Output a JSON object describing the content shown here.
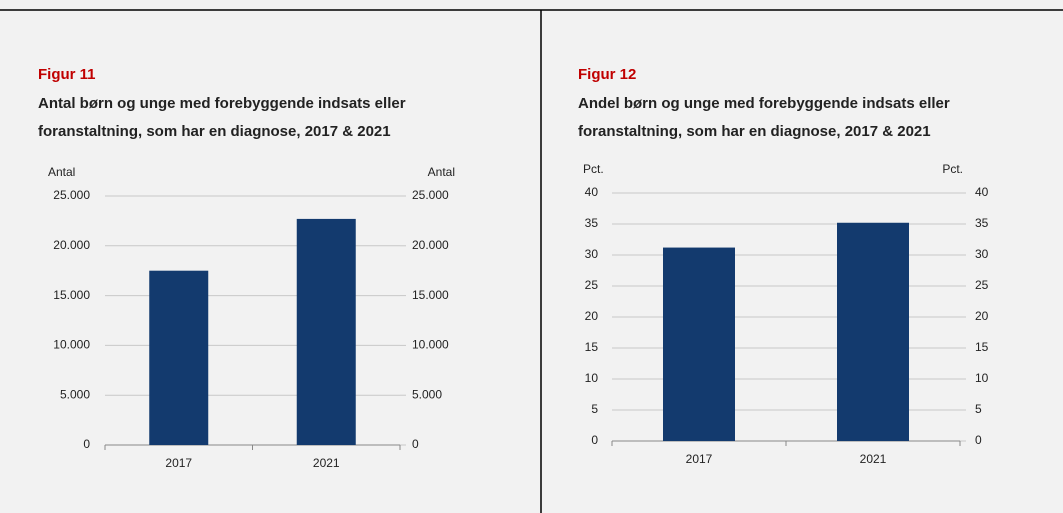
{
  "chart_data": [
    {
      "type": "bar",
      "label": "Figur 11",
      "title": [
        "Antal børn og unge med forebyggende indsats eller",
        "foranstaltning, som har en diagnose, 2017 & 2021"
      ],
      "ylabel": "Antal",
      "y2label": "Antal",
      "categories": [
        "2017",
        "2021"
      ],
      "values": [
        17500,
        22700
      ],
      "color": "#133a6e",
      "ylim": [
        0,
        25000
      ],
      "yticks": [
        0,
        {
          "value": 5000,
          "label": "5.000"
        },
        {
          "value": 10000,
          "label": "10.000"
        },
        {
          "value": 15000,
          "label": "15.000"
        },
        {
          "value": 20000,
          "label": "20.000"
        },
        {
          "value": 25000,
          "label": "25.000"
        }
      ],
      "y2lim": [
        0,
        25000
      ],
      "y2ticks": [
        0,
        {
          "value": 5000,
          "label": "5.000"
        },
        {
          "value": 10000,
          "label": "10.000"
        },
        {
          "value": 15000,
          "label": "15.000"
        },
        {
          "value": 20000,
          "label": "20.000"
        },
        {
          "value": 25000,
          "label": "25.000"
        }
      ],
      "grid": true
    },
    {
      "type": "bar",
      "label": "Figur 12",
      "title": [
        "Andel børn og unge med forebyggende indsats eller",
        "foranstaltning, som har en diagnose, 2017 & 2021"
      ],
      "ylabel": "Pct.",
      "y2label": "Pct.",
      "categories": [
        "2017",
        "2021"
      ],
      "values": [
        31.2,
        35.2
      ],
      "color": "#133a6e",
      "ylim": [
        0,
        40
      ],
      "yticks": [
        0,
        5,
        10,
        15,
        20,
        25,
        30,
        35,
        40
      ],
      "y2lim": [
        0,
        40
      ],
      "y2ticks": [
        0,
        5,
        10,
        15,
        20,
        25,
        30,
        35,
        40
      ],
      "grid": true
    }
  ]
}
